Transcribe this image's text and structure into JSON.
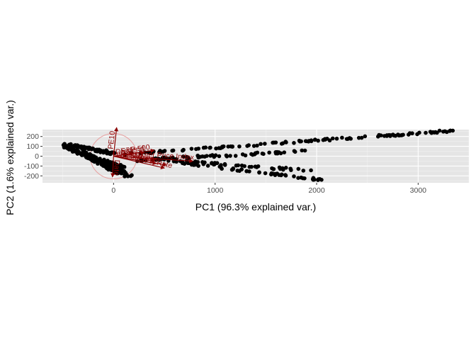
{
  "chart_data": {
    "type": "scatter",
    "subtype": "pca-biplot",
    "title": "",
    "xlabel": "PC1 (96.3% explained var.)",
    "ylabel": "PC2 (1.6% explained var.)",
    "xlim": [
      -700,
      3500
    ],
    "ylim": [
      -270,
      270
    ],
    "x_ticks": [
      0,
      1000,
      2000,
      3000
    ],
    "y_ticks": [
      -200,
      -100,
      0,
      100,
      200
    ],
    "grid": true,
    "panel_background": "#e5e5e5",
    "point_color": "#000000",
    "arrow_color": "#8b0000",
    "circle_color": "#e8a0a0",
    "correlation_circle": {
      "cx": 0,
      "cy": 0,
      "r": 230
    },
    "series": [
      {
        "segments": [
          {
            "x0": -480,
            "x1": 0,
            "y0": 120,
            "y1": 30,
            "n": 80,
            "spread": 14
          },
          {
            "x0": -480,
            "x1": 100,
            "y0": 100,
            "y1": -120,
            "n": 90,
            "spread": 14
          },
          {
            "x0": -430,
            "x1": 100,
            "y0": 80,
            "y1": -200,
            "n": 70,
            "spread": 14
          },
          {
            "x0": -300,
            "x1": 200,
            "y0": 40,
            "y1": -220,
            "n": 50,
            "spread": 12
          },
          {
            "x0": 100,
            "x1": 3420,
            "y0": 20,
            "y1": 265,
            "n": 120,
            "spread": 10
          },
          {
            "x0": 200,
            "x1": 1900,
            "y0": -40,
            "y1": 50,
            "n": 60,
            "spread": 12
          },
          {
            "x0": 400,
            "x1": 1950,
            "y0": -30,
            "y1": -150,
            "n": 50,
            "spread": 12
          },
          {
            "x0": 600,
            "x1": 2050,
            "y0": -60,
            "y1": -240,
            "n": 55,
            "spread": 10
          }
        ]
      }
    ],
    "arrows": [
      {
        "label": "Consumer Price Index",
        "x": 780,
        "y": -50
      },
      {
        "label": "S&P 500",
        "x": 400,
        "y": 60
      },
      {
        "label": "Dividend",
        "x": 300,
        "y": 40
      },
      {
        "label": "Earnings",
        "x": 520,
        "y": -90
      },
      {
        "label": "Long Interest Rate",
        "x": 500,
        "y": -120
      },
      {
        "label": "Real Price",
        "x": 420,
        "y": -75
      },
      {
        "label": "PE10",
        "x": 30,
        "y": 290
      },
      {
        "label": "Date",
        "x": -10,
        "y": -210
      }
    ]
  }
}
